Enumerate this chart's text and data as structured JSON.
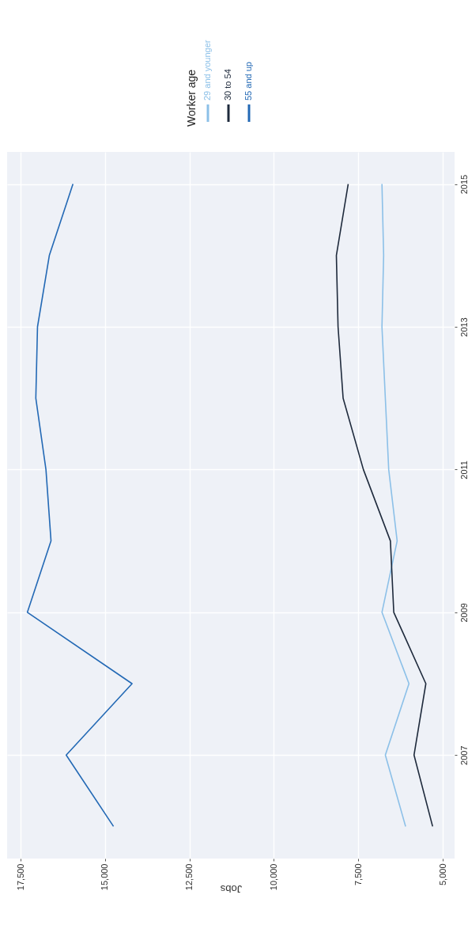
{
  "chart_data": {
    "type": "line",
    "xlabel": "Jobs",
    "legend_title": "Worker age",
    "series": [
      {
        "name": "29 and younger",
        "color": "#8cc0e8",
        "x": [
          6100,
          6700,
          6000,
          6800,
          6350,
          6600,
          6700,
          6800,
          6750,
          6800
        ],
        "values": [
          2006,
          2007,
          2008,
          2009,
          2010,
          2011,
          2012,
          2013,
          2014,
          2015
        ]
      },
      {
        "name": "30 to 54",
        "color": "#1e2a3c",
        "x": [
          5300,
          5850,
          5500,
          6450,
          6550,
          7350,
          7950,
          8100,
          8150,
          7800
        ],
        "values": [
          2006,
          2007,
          2008,
          2009,
          2010,
          2011,
          2012,
          2013,
          2014,
          2015
        ]
      },
      {
        "name": "55 and up",
        "color": "#2369b5",
        "x": [
          14750,
          16150,
          14200,
          17300,
          16600,
          16750,
          17050,
          17000,
          16650,
          15950
        ],
        "values": [
          2006,
          2007,
          2008,
          2009,
          2010,
          2011,
          2012,
          2013,
          2014,
          2015
        ]
      }
    ],
    "ylim": [
      2005.55,
      2015.45
    ],
    "yticks": [
      2007,
      2009,
      2011,
      2013,
      2015
    ],
    "xlim": [
      17900,
      4650
    ],
    "xticks": [
      {
        "value": 17500,
        "label": "17,500"
      },
      {
        "value": 15000,
        "label": "15,000"
      },
      {
        "value": 12500,
        "label": "12,500"
      },
      {
        "value": 10000,
        "label": "10,000"
      },
      {
        "value": 7500,
        "label": "7,500"
      },
      {
        "value": 5000,
        "label": "5,000"
      }
    ],
    "grid": true,
    "legend": "top right"
  }
}
